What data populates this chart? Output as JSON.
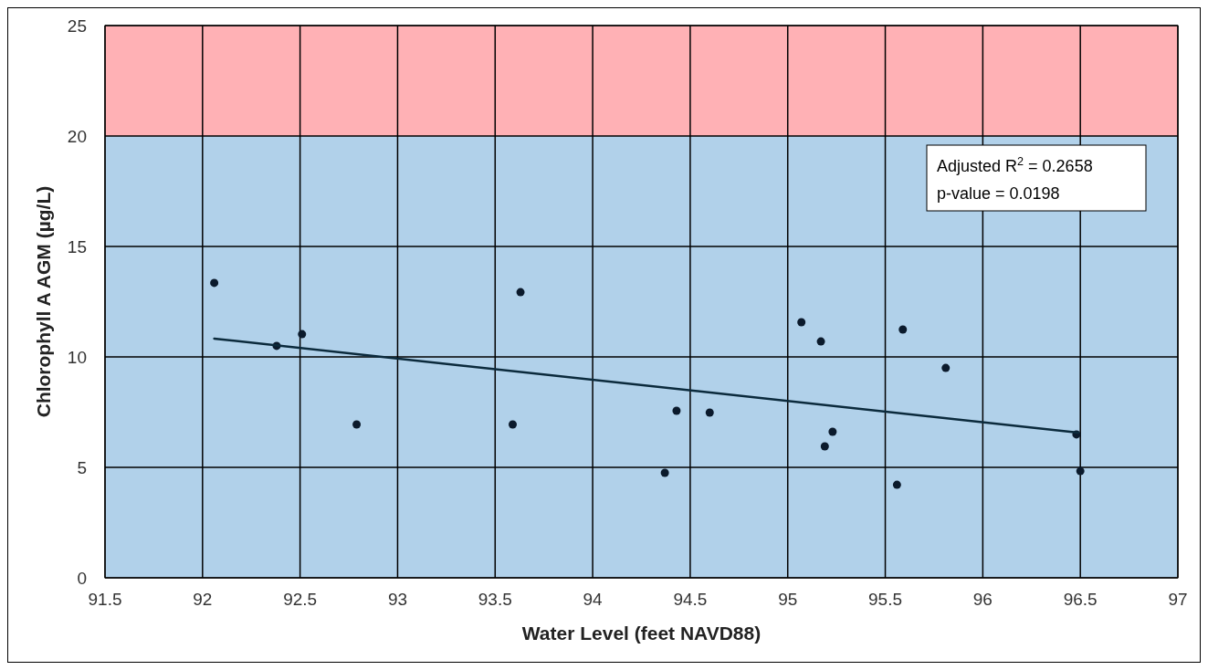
{
  "chart_data": {
    "type": "scatter",
    "xlabel": "Water Level (feet NAVD88)",
    "ylabel": "Chlorophyll A AGM (µg/L)",
    "xlim": [
      91.5,
      97
    ],
    "xticks": [
      91.5,
      92,
      92.5,
      93,
      93.5,
      94,
      94.5,
      95,
      95.5,
      96,
      96.5,
      97
    ],
    "ylim": [
      0,
      25
    ],
    "yticks": [
      0,
      5,
      10,
      15,
      20,
      25
    ],
    "grid": true,
    "bands": [
      {
        "axis": "y",
        "from": 0,
        "to": 20,
        "color": "#b1d1ea"
      },
      {
        "axis": "y",
        "from": 20,
        "to": 25,
        "color": "#ffb1b5"
      }
    ],
    "annotations": [
      "Adjusted R$^{2}$ = 0.2658",
      "p-value = 0.0198"
    ],
    "series": [
      {
        "marker": "circle",
        "color": "#0b1a2c",
        "x": [
          92.06,
          92.38,
          92.51,
          92.79,
          93.59,
          93.63,
          94.37,
          94.43,
          94.6,
          95.07,
          95.17,
          95.19,
          95.23,
          95.56,
          95.59,
          95.81,
          96.48,
          96.5
        ],
        "values": [
          13.35,
          10.5,
          11.03,
          6.94,
          6.94,
          12.93,
          4.75,
          7.56,
          7.48,
          11.57,
          10.7,
          5.95,
          6.61,
          4.21,
          11.24,
          9.5,
          6.49,
          4.83
        ]
      },
      {
        "type": "line",
        "marker": "none",
        "color": "#0b2a3c",
        "x": [
          92.06,
          96.49
        ],
        "values": [
          10.83,
          6.57
        ]
      }
    ]
  }
}
